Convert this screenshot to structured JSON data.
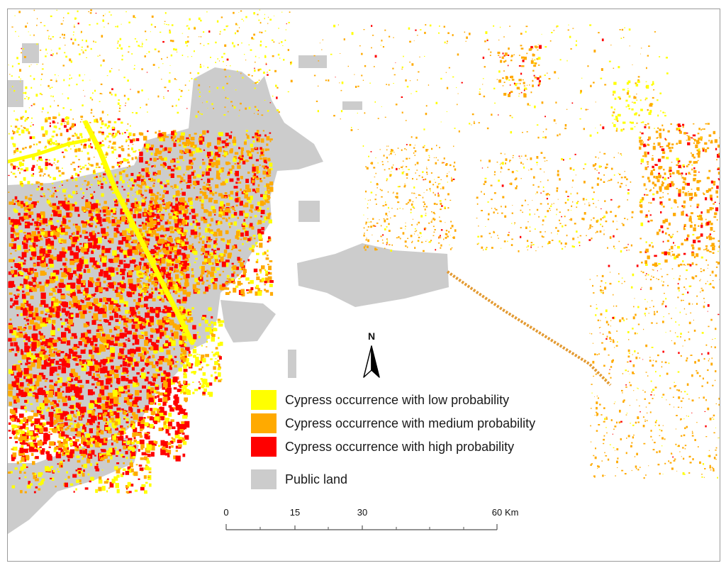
{
  "legend": {
    "items": [
      {
        "label": "Cypress occurrence with low probability",
        "color": "#ffff00"
      },
      {
        "label": "Cypress occurrence with medium probability",
        "color": "#ffaa00"
      },
      {
        "label": "Cypress occurrence with high probability",
        "color": "#ff0000"
      },
      {
        "label": "Public land",
        "color": "#cccccc"
      }
    ]
  },
  "north_arrow": {
    "label": "N"
  },
  "scale_bar": {
    "ticks": [
      "0",
      "15",
      "30",
      "60"
    ],
    "unit": "Km"
  },
  "colors": {
    "frame_border": "#9a9a9a",
    "public_land": "#cccccc",
    "low": "#ffff00",
    "medium": "#ffaa00",
    "high": "#ff0000",
    "water": "#ffffff"
  }
}
